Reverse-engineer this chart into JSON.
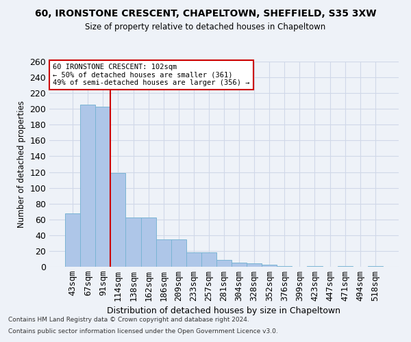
{
  "title1": "60, IRONSTONE CRESCENT, CHAPELTOWN, SHEFFIELD, S35 3XW",
  "title2": "Size of property relative to detached houses in Chapeltown",
  "xlabel": "Distribution of detached houses by size in Chapeltown",
  "ylabel": "Number of detached properties",
  "footnote1": "Contains HM Land Registry data © Crown copyright and database right 2024.",
  "footnote2": "Contains public sector information licensed under the Open Government Licence v3.0.",
  "categories": [
    "43sqm",
    "67sqm",
    "91sqm",
    "114sqm",
    "138sqm",
    "162sqm",
    "186sqm",
    "209sqm",
    "233sqm",
    "257sqm",
    "281sqm",
    "304sqm",
    "328sqm",
    "352sqm",
    "376sqm",
    "399sqm",
    "423sqm",
    "447sqm",
    "471sqm",
    "494sqm",
    "518sqm"
  ],
  "values": [
    68,
    205,
    203,
    119,
    62,
    62,
    35,
    35,
    18,
    18,
    9,
    5,
    4,
    3,
    1,
    0,
    1,
    0,
    1,
    0,
    1
  ],
  "bar_color": "#aec6e8",
  "bar_edge_color": "#7ab4d4",
  "grid_color": "#d0d8e8",
  "background_color": "#eef2f8",
  "vline_x": 2.5,
  "vline_color": "#cc0000",
  "annotation_line1": "60 IRONSTONE CRESCENT: 102sqm",
  "annotation_line2": "← 50% of detached houses are smaller (361)",
  "annotation_line3": "49% of semi-detached houses are larger (356) →",
  "annotation_box_color": "#ffffff",
  "annotation_box_edge": "#cc0000",
  "ylim": [
    0,
    260
  ],
  "yticks": [
    0,
    20,
    40,
    60,
    80,
    100,
    120,
    140,
    160,
    180,
    200,
    220,
    240,
    260
  ]
}
